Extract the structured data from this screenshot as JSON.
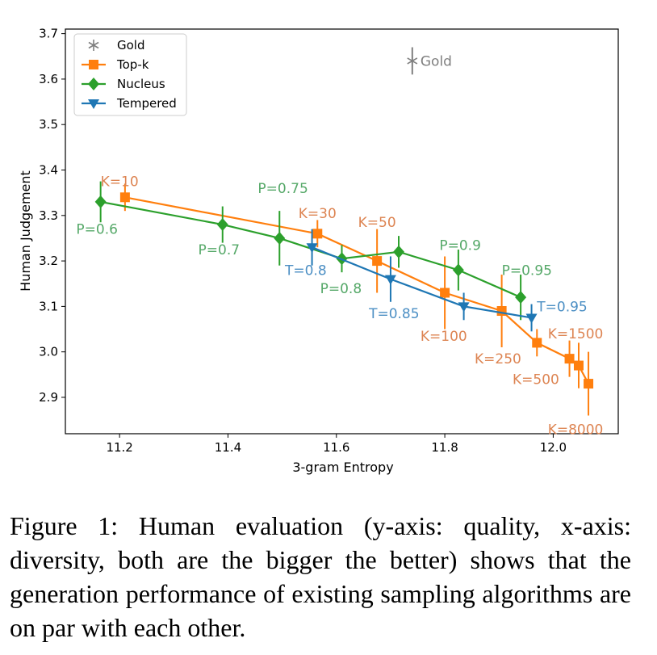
{
  "chart_data": {
    "type": "line",
    "xlabel": "3-gram Entropy",
    "ylabel": "Human Judgement",
    "xlim": [
      11.1,
      12.12
    ],
    "ylim": [
      2.82,
      3.71
    ],
    "xticks": [
      "11.2",
      "11.4",
      "11.6",
      "11.8",
      "12.0"
    ],
    "xtick_values": [
      11.2,
      11.4,
      11.6,
      11.8,
      12.0
    ],
    "yticks": [
      "2.9",
      "3.0",
      "3.1",
      "3.2",
      "3.3",
      "3.4",
      "3.5",
      "3.6",
      "3.7"
    ],
    "ytick_values": [
      2.9,
      3.0,
      3.1,
      3.2,
      3.3,
      3.4,
      3.5,
      3.6,
      3.7
    ],
    "grid": false,
    "legend": "top-left",
    "series": [
      {
        "name": "Gold",
        "color": "#7f7f7f",
        "marker": "star",
        "points": [
          {
            "x": 11.74,
            "y": 3.64,
            "err": 0.03,
            "label": "Gold"
          }
        ]
      },
      {
        "name": "Top-k",
        "color": "#ff7f0e",
        "marker": "square",
        "points": [
          {
            "x": 11.21,
            "y": 3.34,
            "err": 0.03,
            "label": "K=10"
          },
          {
            "x": 11.565,
            "y": 3.26,
            "err": 0.03,
            "label": "K=30"
          },
          {
            "x": 11.675,
            "y": 3.2,
            "err": 0.07,
            "label": "K=50"
          },
          {
            "x": 11.8,
            "y": 3.13,
            "err": 0.08,
            "label": "K=100"
          },
          {
            "x": 11.905,
            "y": 3.09,
            "err": 0.08,
            "label": "K=250"
          },
          {
            "x": 11.97,
            "y": 3.02,
            "err": 0.03,
            "label": "K=500"
          },
          {
            "x": 12.03,
            "y": 2.985,
            "err": 0.04,
            "label": "K=1500"
          },
          {
            "x": 12.047,
            "y": 2.97,
            "err": 0.05,
            "label": ""
          },
          {
            "x": 12.065,
            "y": 2.93,
            "err": 0.07,
            "label": "K=8000"
          }
        ]
      },
      {
        "name": "Nucleus",
        "color": "#2ca02c",
        "marker": "diamond",
        "points": [
          {
            "x": 11.165,
            "y": 3.33,
            "err": 0.045,
            "label": "P=0.6"
          },
          {
            "x": 11.39,
            "y": 3.28,
            "err": 0.04,
            "label": "P=0.7"
          },
          {
            "x": 11.495,
            "y": 3.25,
            "err": 0.06,
            "label": "P=0.75"
          },
          {
            "x": 11.61,
            "y": 3.205,
            "err": 0.03,
            "label": "P=0.8"
          },
          {
            "x": 11.715,
            "y": 3.22,
            "err": 0.035,
            "label": "P=0.9"
          },
          {
            "x": 11.825,
            "y": 3.18,
            "err": 0.045,
            "label": "P=0.9"
          },
          {
            "x": 11.94,
            "y": 3.12,
            "err": 0.05,
            "label": "P=0.95"
          }
        ]
      },
      {
        "name": "Tempered",
        "color": "#1f77b4",
        "marker": "triangle-down",
        "points": [
          {
            "x": 11.555,
            "y": 3.23,
            "err": 0.04,
            "label": "T=0.8"
          },
          {
            "x": 11.7,
            "y": 3.16,
            "err": 0.05,
            "label": "T=0.85"
          },
          {
            "x": 11.835,
            "y": 3.1,
            "err": 0.03,
            "label": "T=0.95"
          },
          {
            "x": 11.96,
            "y": 3.075,
            "err": 0.03,
            "label": "T=0.95"
          }
        ]
      }
    ],
    "annotations": [
      {
        "text": "Gold",
        "x": 11.755,
        "y": 3.64,
        "color": "#7f7f7f"
      },
      {
        "text": "K=10",
        "x": 11.165,
        "y": 3.375,
        "color": "#dd8452"
      },
      {
        "text": "K=30",
        "x": 11.53,
        "y": 3.305,
        "color": "#dd8452"
      },
      {
        "text": "K=50",
        "x": 11.64,
        "y": 3.285,
        "color": "#dd8452"
      },
      {
        "text": "K=100",
        "x": 11.755,
        "y": 3.035,
        "color": "#dd8452"
      },
      {
        "text": "K=250",
        "x": 11.855,
        "y": 2.985,
        "color": "#dd8452"
      },
      {
        "text": "K=500",
        "x": 11.925,
        "y": 2.94,
        "color": "#dd8452"
      },
      {
        "text": "K=1500",
        "x": 11.99,
        "y": 3.04,
        "color": "#dd8452"
      },
      {
        "text": "K=8000",
        "x": 11.99,
        "y": 2.83,
        "color": "#dd8452"
      },
      {
        "text": "P=0.6",
        "x": 11.12,
        "y": 3.27,
        "color": "#55a868"
      },
      {
        "text": "P=0.7",
        "x": 11.345,
        "y": 3.225,
        "color": "#55a868"
      },
      {
        "text": "P=0.75",
        "x": 11.455,
        "y": 3.36,
        "color": "#55a868"
      },
      {
        "text": "P=0.8",
        "x": 11.57,
        "y": 3.14,
        "color": "#55a868"
      },
      {
        "text": "P=0.9",
        "x": 11.79,
        "y": 3.235,
        "color": "#55a868"
      },
      {
        "text": "P=0.95",
        "x": 11.905,
        "y": 3.18,
        "color": "#55a868"
      },
      {
        "text": "T=0.8",
        "x": 11.505,
        "y": 3.18,
        "color": "#4c8fc4"
      },
      {
        "text": "T=0.85",
        "x": 11.66,
        "y": 3.085,
        "color": "#4c8fc4"
      },
      {
        "text": "T=0.95",
        "x": 11.97,
        "y": 3.1,
        "color": "#4c8fc4"
      }
    ]
  },
  "caption": "Figure 1: Human evaluation (y-axis: quality, x-axis: diversity, both are the bigger the better) shows that the generation performance of existing sampling algorithms are on par with each other."
}
